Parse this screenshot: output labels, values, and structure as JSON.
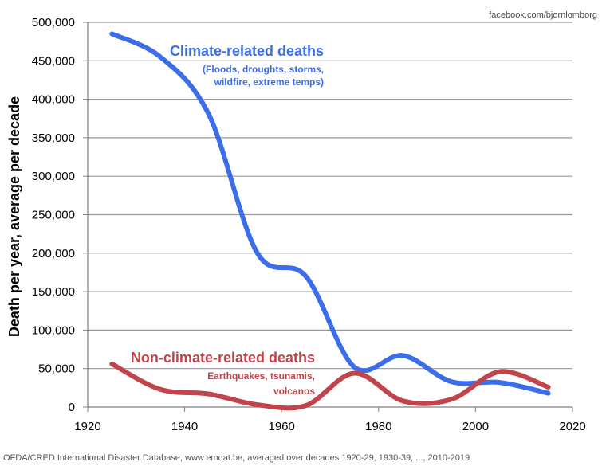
{
  "chart_data": {
    "type": "line",
    "title": "",
    "xlabel": "",
    "ylabel": "Death per year, average per decade",
    "xlim": [
      1920,
      2020
    ],
    "ylim": [
      0,
      500000
    ],
    "x_ticks": [
      "1920",
      "1940",
      "1960",
      "1980",
      "2000",
      "2020"
    ],
    "y_ticks": [
      "0",
      "50,000",
      "100,000",
      "150,000",
      "200,000",
      "250,000",
      "300,000",
      "350,000",
      "400,000",
      "450,000",
      "500,000"
    ],
    "grid": "horizontal",
    "credit": "facebook.com/bjornlomborg",
    "source": "OFDA/CRED International Disaster Database, www.emdat.be, averaged over decades 1920-29, 1930-39, ..., 2010-2019",
    "series": [
      {
        "name": "Climate-related deaths",
        "sublabel_lines": [
          "(Floods, droughts, storms,",
          "wildfire, extreme temps)"
        ],
        "color": "#3b6ee8",
        "x": [
          1925,
          1935,
          1945,
          1955,
          1965,
          1975,
          1985,
          1995,
          2005,
          2015
        ],
        "values": [
          485000,
          455000,
          380000,
          200000,
          170000,
          52000,
          67000,
          33000,
          32000,
          18000
        ]
      },
      {
        "name": "Non-climate-related deaths",
        "sublabel_lines": [
          "Earthquakes, tsunamis,",
          "volcanos"
        ],
        "color": "#c0444a",
        "x": [
          1925,
          1935,
          1945,
          1955,
          1965,
          1975,
          1985,
          1995,
          2005,
          2015
        ],
        "values": [
          56000,
          23000,
          17000,
          3000,
          2000,
          44000,
          8000,
          10000,
          46000,
          26000
        ]
      }
    ]
  }
}
